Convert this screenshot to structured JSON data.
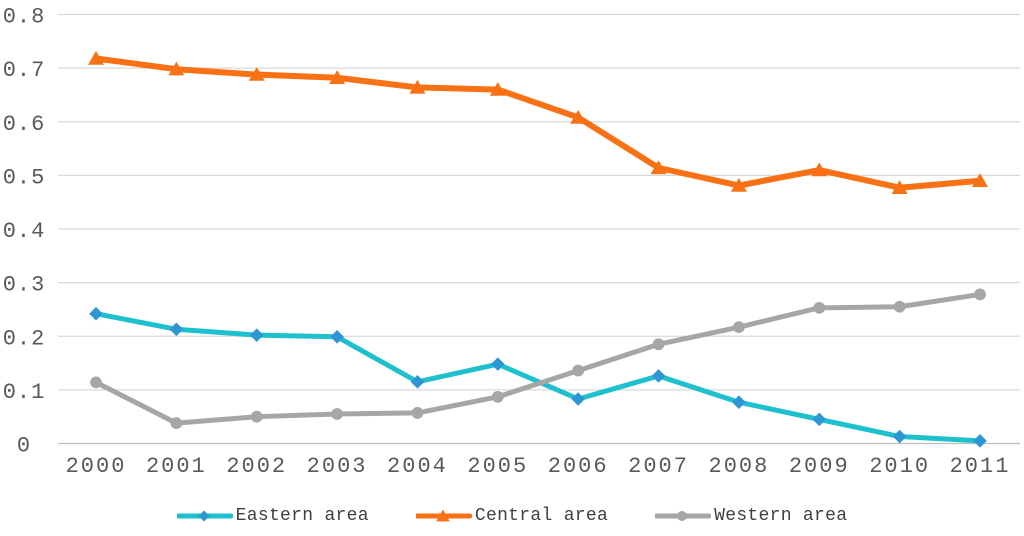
{
  "chart_data": {
    "type": "line",
    "x": [
      "2000",
      "2001",
      "2002",
      "2003",
      "2004",
      "2005",
      "2006",
      "2007",
      "2008",
      "2009",
      "2010",
      "2011"
    ],
    "series": [
      {
        "name": "Eastern area",
        "marker": "diamond",
        "line_color": "#1FC0CE",
        "marker_color": "#2E96D5",
        "values": [
          0.242,
          0.213,
          0.202,
          0.199,
          0.115,
          0.148,
          0.083,
          0.126,
          0.077,
          0.045,
          0.013,
          0.005
        ]
      },
      {
        "name": "Central area",
        "marker": "triangle",
        "line_color": "#F87115",
        "marker_color": "#F87115",
        "values": [
          0.718,
          0.698,
          0.688,
          0.682,
          0.664,
          0.66,
          0.608,
          0.514,
          0.481,
          0.51,
          0.477,
          0.49
        ]
      },
      {
        "name": "Western area",
        "marker": "circle",
        "line_color": "#A6A6A6",
        "marker_color": "#A6A6A6",
        "values": [
          0.114,
          0.038,
          0.05,
          0.055,
          0.057,
          0.087,
          0.136,
          0.185,
          0.217,
          0.253,
          0.255,
          0.278
        ]
      }
    ],
    "title": "",
    "xlabel": "",
    "ylabel": "",
    "ylim": [
      0,
      0.8
    ],
    "ytick_step": 0.1,
    "ytick_labels": [
      "0",
      "0.1",
      "0.2",
      "0.3",
      "0.4",
      "0.5",
      "0.6",
      "0.7",
      "0.8"
    ],
    "grid": true,
    "legend_position": "bottom"
  },
  "colors": {
    "background": "#FFFFFF",
    "gridline": "#D9D9D9",
    "axis_line": "#BFBFBF",
    "tick_text": "#595959",
    "legend_text": "#404040"
  },
  "legend": {
    "items": [
      {
        "label": "Eastern area"
      },
      {
        "label": "Central area"
      },
      {
        "label": "Western area"
      }
    ]
  }
}
